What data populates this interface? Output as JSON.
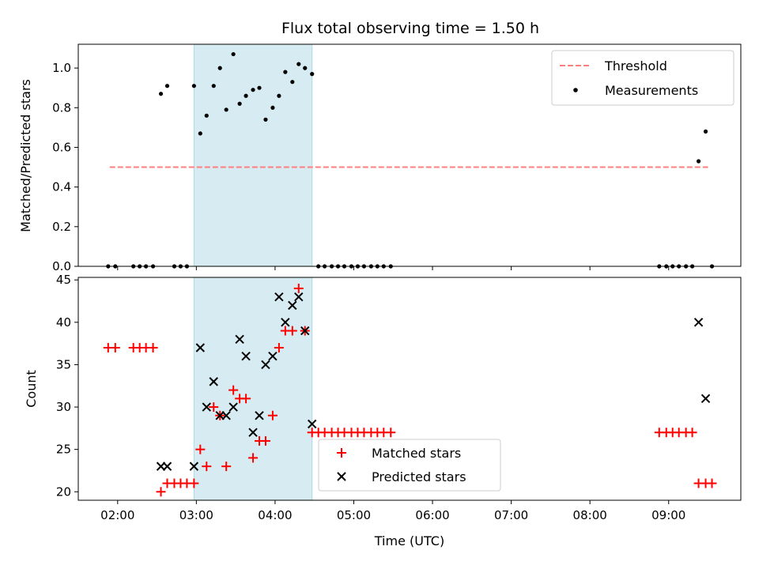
{
  "chart_data": [
    {
      "type": "scatter",
      "title": "Flux total observing time = 1.50 h",
      "xlabel": "",
      "ylabel": "Matched/Predicted stars",
      "xlim": [
        1.5,
        9.916667
      ],
      "ylim": [
        0,
        1.12
      ],
      "yticks": [
        0.0,
        0.2,
        0.4,
        0.6,
        0.8,
        1.0
      ],
      "ytick_labels": [
        "0.0",
        "0.2",
        "0.4",
        "0.6",
        "0.8",
        "1.0"
      ],
      "legend": {
        "position": "top-right",
        "entries": [
          "Threshold",
          "Measurements"
        ]
      },
      "shaded_span": {
        "x": [
          2.97,
          4.47
        ],
        "color": "#add8e6"
      },
      "threshold": {
        "name": "Threshold",
        "x": [
          1.9,
          9.5
        ],
        "y": 0.5,
        "color": "#ff7f7f"
      },
      "series": [
        {
          "name": "Measurements",
          "color": "#000000",
          "points": [
            [
              1.88,
              0
            ],
            [
              1.97,
              0
            ],
            [
              2.2,
              0
            ],
            [
              2.28,
              0
            ],
            [
              2.36,
              0
            ],
            [
              2.45,
              0
            ],
            [
              2.55,
              0.87
            ],
            [
              2.63,
              0.91
            ],
            [
              2.72,
              0
            ],
            [
              2.8,
              0
            ],
            [
              2.88,
              0
            ],
            [
              2.97,
              0.91
            ],
            [
              3.05,
              0.67
            ],
            [
              3.13,
              0.76
            ],
            [
              3.22,
              0.91
            ],
            [
              3.3,
              1.0
            ],
            [
              3.38,
              0.79
            ],
            [
              3.47,
              1.07
            ],
            [
              3.55,
              0.82
            ],
            [
              3.63,
              0.86
            ],
            [
              3.72,
              0.89
            ],
            [
              3.8,
              0.9
            ],
            [
              3.88,
              0.74
            ],
            [
              3.97,
              0.8
            ],
            [
              4.05,
              0.86
            ],
            [
              4.13,
              0.98
            ],
            [
              4.22,
              0.93
            ],
            [
              4.3,
              1.02
            ],
            [
              4.38,
              1.0
            ],
            [
              4.47,
              0.97
            ],
            [
              4.55,
              0
            ],
            [
              4.63,
              0
            ],
            [
              4.72,
              0
            ],
            [
              4.8,
              0
            ],
            [
              4.88,
              0
            ],
            [
              4.97,
              0
            ],
            [
              5.05,
              0
            ],
            [
              5.13,
              0
            ],
            [
              5.22,
              0
            ],
            [
              5.3,
              0
            ],
            [
              5.38,
              0
            ],
            [
              5.47,
              0
            ],
            [
              8.88,
              0
            ],
            [
              8.97,
              0
            ],
            [
              9.05,
              0
            ],
            [
              9.13,
              0
            ],
            [
              9.22,
              0
            ],
            [
              9.3,
              0
            ],
            [
              9.38,
              0.53
            ],
            [
              9.47,
              0.68
            ],
            [
              9.55,
              0
            ]
          ]
        }
      ]
    },
    {
      "type": "scatter",
      "title": "",
      "xlabel": "Time (UTC)",
      "ylabel": "Count",
      "xlim": [
        1.5,
        9.916667
      ],
      "ylim": [
        19,
        45.3
      ],
      "xticks": [
        2,
        3,
        4,
        5,
        6,
        7,
        8,
        9
      ],
      "xtick_labels": [
        "02:00",
        "03:00",
        "04:00",
        "05:00",
        "06:00",
        "07:00",
        "08:00",
        "09:00"
      ],
      "yticks": [
        20,
        25,
        30,
        35,
        40,
        45
      ],
      "ytick_labels": [
        "20",
        "25",
        "30",
        "35",
        "40",
        "45"
      ],
      "legend": {
        "position": "lower-center",
        "entries": [
          "Matched stars",
          "Predicted stars"
        ]
      },
      "shaded_span": {
        "x": [
          2.97,
          4.47
        ],
        "color": "#add8e6"
      },
      "series": [
        {
          "name": "Matched stars",
          "marker": "plus",
          "color": "#ff0000",
          "points": [
            [
              1.88,
              37
            ],
            [
              1.97,
              37
            ],
            [
              2.2,
              37
            ],
            [
              2.28,
              37
            ],
            [
              2.36,
              37
            ],
            [
              2.45,
              37
            ],
            [
              2.55,
              20
            ],
            [
              2.63,
              21
            ],
            [
              2.72,
              21
            ],
            [
              2.8,
              21
            ],
            [
              2.88,
              21
            ],
            [
              2.97,
              21
            ],
            [
              3.05,
              25
            ],
            [
              3.13,
              23
            ],
            [
              3.22,
              30
            ],
            [
              3.3,
              29
            ],
            [
              3.38,
              23
            ],
            [
              3.47,
              32
            ],
            [
              3.55,
              31
            ],
            [
              3.63,
              31
            ],
            [
              3.72,
              24
            ],
            [
              3.8,
              26
            ],
            [
              3.88,
              26
            ],
            [
              3.97,
              29
            ],
            [
              4.05,
              37
            ],
            [
              4.13,
              39
            ],
            [
              4.22,
              39
            ],
            [
              4.3,
              44
            ],
            [
              4.38,
              39
            ],
            [
              4.47,
              27
            ],
            [
              4.55,
              27
            ],
            [
              4.63,
              27
            ],
            [
              4.72,
              27
            ],
            [
              4.8,
              27
            ],
            [
              4.88,
              27
            ],
            [
              4.97,
              27
            ],
            [
              5.05,
              27
            ],
            [
              5.13,
              27
            ],
            [
              5.22,
              27
            ],
            [
              5.3,
              27
            ],
            [
              5.38,
              27
            ],
            [
              5.47,
              27
            ],
            [
              8.88,
              27
            ],
            [
              8.97,
              27
            ],
            [
              9.05,
              27
            ],
            [
              9.13,
              27
            ],
            [
              9.22,
              27
            ],
            [
              9.3,
              27
            ],
            [
              9.38,
              21
            ],
            [
              9.47,
              21
            ],
            [
              9.55,
              21
            ]
          ]
        },
        {
          "name": "Predicted stars",
          "marker": "x",
          "color": "#000000",
          "points": [
            [
              2.55,
              23
            ],
            [
              2.63,
              23
            ],
            [
              2.97,
              23
            ],
            [
              3.05,
              37
            ],
            [
              3.13,
              30
            ],
            [
              3.22,
              33
            ],
            [
              3.3,
              29
            ],
            [
              3.38,
              29
            ],
            [
              3.47,
              30
            ],
            [
              3.55,
              38
            ],
            [
              3.63,
              36
            ],
            [
              3.72,
              27
            ],
            [
              3.8,
              29
            ],
            [
              3.88,
              35
            ],
            [
              3.97,
              36
            ],
            [
              4.05,
              43
            ],
            [
              4.13,
              40
            ],
            [
              4.22,
              42
            ],
            [
              4.3,
              43
            ],
            [
              4.38,
              39
            ],
            [
              4.47,
              28
            ],
            [
              9.38,
              40
            ],
            [
              9.47,
              31
            ]
          ]
        }
      ]
    }
  ]
}
